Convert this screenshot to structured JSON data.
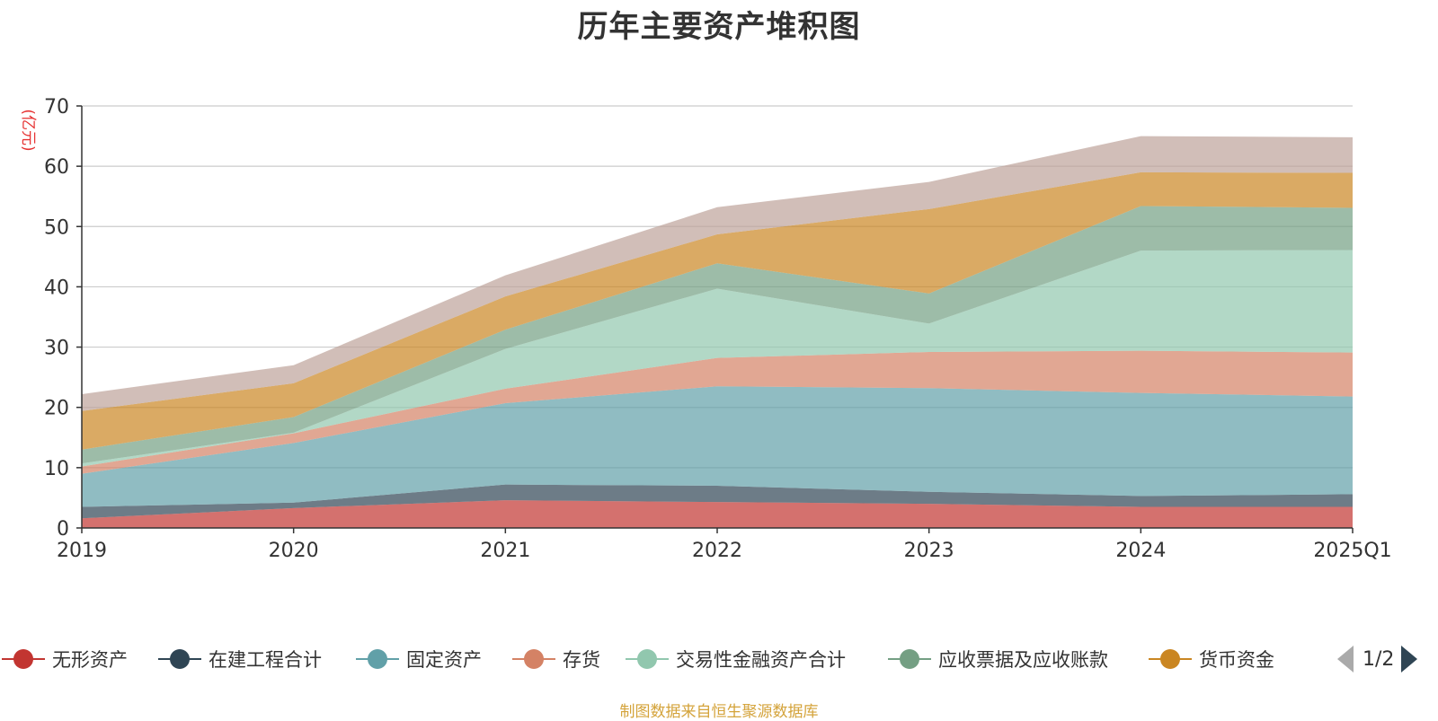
{
  "chart_data": {
    "type": "area",
    "stacked": true,
    "title": "历年主要资产堆积图",
    "ylabel": "(亿元)",
    "ylim": [
      0,
      70
    ],
    "yticks": [
      0,
      10,
      20,
      30,
      40,
      50,
      60,
      70
    ],
    "categories": [
      "2019",
      "2020",
      "2021",
      "2022",
      "2023",
      "2024",
      "2025Q1"
    ],
    "grid": true,
    "legend_position": "bottom",
    "series": [
      {
        "name": "无形资产",
        "color": "#c23531",
        "values": [
          1.6,
          3.3,
          4.6,
          4.3,
          4.0,
          3.5,
          3.5
        ]
      },
      {
        "name": "在建工程合计",
        "color": "#2f4554",
        "values": [
          1.9,
          0.9,
          2.6,
          2.7,
          2.0,
          1.8,
          2.1
        ]
      },
      {
        "name": "固定资产",
        "color": "#61a0a8",
        "values": [
          5.5,
          9.9,
          13.5,
          16.5,
          17.2,
          17.1,
          16.2
        ]
      },
      {
        "name": "存货",
        "color": "#d48265",
        "values": [
          1.2,
          1.6,
          2.4,
          4.7,
          6.0,
          7.0,
          7.3
        ]
      },
      {
        "name": "交易性金融资产合计",
        "color": "#91c7ae",
        "values": [
          0.5,
          0.1,
          6.6,
          11.5,
          4.7,
          16.6,
          17.0
        ]
      },
      {
        "name": "应收票据及应收账款",
        "color": "#749f83",
        "values": [
          2.3,
          2.6,
          3.2,
          4.2,
          5.0,
          7.4,
          7.0
        ]
      },
      {
        "name": "货币资金",
        "color": "#ca8622",
        "values": [
          6.4,
          5.6,
          5.5,
          4.8,
          14.0,
          5.6,
          5.8
        ]
      },
      {
        "name": "",
        "color": "#bda29a",
        "values": [
          2.8,
          3.0,
          3.5,
          4.5,
          4.5,
          6.0,
          5.9
        ]
      }
    ]
  },
  "legend": {
    "items": [
      "无形资产",
      "在建工程合计",
      "固定资产",
      "存货",
      "交易性金融资产合计",
      "应收票据及应收账款",
      "货币资金"
    ],
    "colors": [
      "#c23531",
      "#2f4554",
      "#61a0a8",
      "#d48265",
      "#91c7ae",
      "#749f83",
      "#ca8622"
    ],
    "page": "1/2"
  },
  "source_text": "制图数据来自恒生聚源数据库"
}
